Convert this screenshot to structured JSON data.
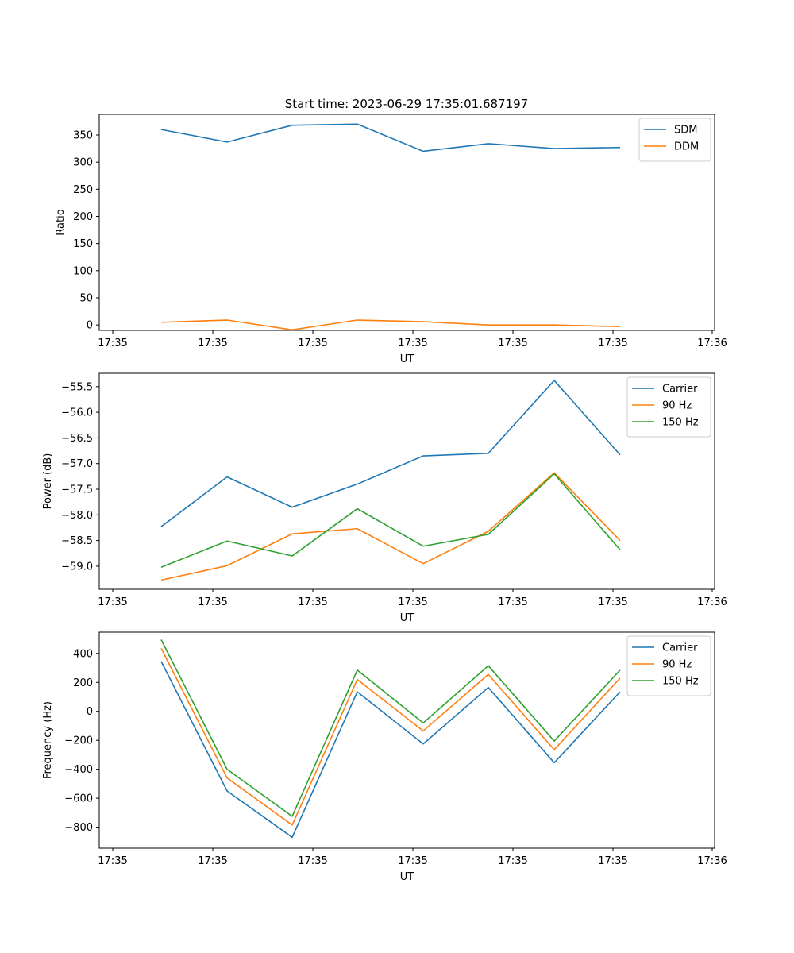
{
  "figure": {
    "title": "Start time: 2023-06-29 17:35:01.687197"
  },
  "chart_data": [
    {
      "type": "line",
      "title": "Start time: 2023-06-29 17:35:01.687197",
      "xlabel": "UT",
      "ylabel": "Ratio",
      "x_tick_labels": [
        "17:35",
        "17:35",
        "17:35",
        "17:35",
        "17:35",
        "17:35",
        "17:36"
      ],
      "y_ticks": [
        0,
        50,
        100,
        150,
        200,
        250,
        300,
        350
      ],
      "ylim": [
        -10,
        388
      ],
      "grid": false,
      "legend_position": "top-right",
      "series": [
        {
          "name": "SDM",
          "color": "#1f77b4",
          "values": [
            360,
            337,
            368,
            370,
            320,
            334,
            325,
            327
          ]
        },
        {
          "name": "DDM",
          "color": "#ff7f0e",
          "values": [
            5,
            9,
            -9,
            9,
            6,
            0,
            0,
            -3
          ]
        }
      ]
    },
    {
      "type": "line",
      "xlabel": "UT",
      "ylabel": "Power (dB)",
      "x_tick_labels": [
        "17:35",
        "17:35",
        "17:35",
        "17:35",
        "17:35",
        "17:35",
        "17:36"
      ],
      "y_ticks": [
        -59.0,
        -58.5,
        -58.0,
        -57.5,
        -57.0,
        -56.5,
        -56.0,
        -55.5
      ],
      "y_tick_labels": [
        "−59.0",
        "−58.5",
        "−58.0",
        "−57.5",
        "−57.0",
        "−56.5",
        "−56.0",
        "−55.5"
      ],
      "ylim": [
        -59.45,
        -55.24
      ],
      "grid": false,
      "legend_position": "top-right",
      "series": [
        {
          "name": "Carrier",
          "color": "#1f77b4",
          "values": [
            -58.23,
            -57.26,
            -57.85,
            -57.4,
            -56.85,
            -56.8,
            -55.38,
            -56.83
          ]
        },
        {
          "name": "90 Hz",
          "color": "#ff7f0e",
          "values": [
            -59.27,
            -58.99,
            -58.37,
            -58.27,
            -58.95,
            -58.32,
            -57.18,
            -58.5
          ]
        },
        {
          "name": "150 Hz",
          "color": "#2ca02c",
          "values": [
            -59.02,
            -58.51,
            -58.8,
            -57.88,
            -58.61,
            -58.38,
            -57.2,
            -58.68
          ]
        }
      ]
    },
    {
      "type": "line",
      "xlabel": "UT",
      "ylabel": "Frequency (Hz)",
      "x_tick_labels": [
        "17:35",
        "17:35",
        "17:35",
        "17:35",
        "17:35",
        "17:35",
        "17:36"
      ],
      "y_ticks": [
        -800,
        -600,
        -400,
        -200,
        0,
        200,
        400
      ],
      "y_tick_labels": [
        "−800",
        "−600",
        "−400",
        "−200",
        "0",
        "200",
        "400"
      ],
      "ylim": [
        -945,
        547
      ],
      "grid": false,
      "legend_position": "top-right",
      "series": [
        {
          "name": "Carrier",
          "color": "#1f77b4",
          "values": [
            345,
            -550,
            -870,
            135,
            -225,
            165,
            -355,
            135
          ]
        },
        {
          "name": "90 Hz",
          "color": "#ff7f0e",
          "values": [
            435,
            -460,
            -785,
            220,
            -135,
            255,
            -265,
            230
          ]
        },
        {
          "name": "150 Hz",
          "color": "#2ca02c",
          "values": [
            495,
            -400,
            -725,
            285,
            -80,
            315,
            -205,
            285
          ]
        }
      ]
    }
  ]
}
